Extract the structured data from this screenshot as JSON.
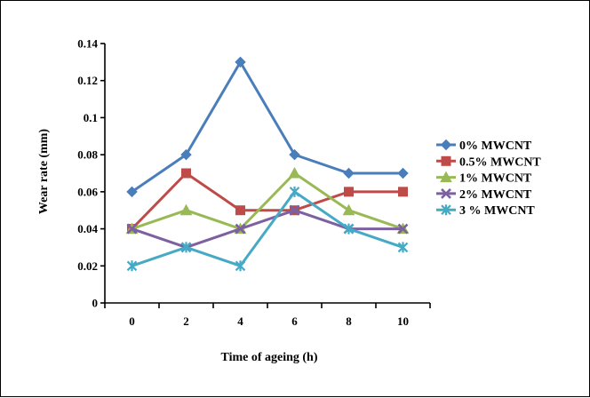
{
  "chart_data": {
    "type": "line",
    "title": "",
    "xlabel": "Time of ageing  (h)",
    "ylabel": "Wear rate  (mm)",
    "x": [
      0,
      2,
      4,
      6,
      8,
      10
    ],
    "x_tick_labels": [
      "0",
      "2",
      "4",
      "6",
      "8",
      "10"
    ],
    "ylim": [
      0,
      0.14
    ],
    "y_ticks": [
      0,
      0.02,
      0.04,
      0.06,
      0.08,
      0.1,
      0.12,
      0.14
    ],
    "y_tick_labels": [
      "0",
      "0.02",
      "0.04",
      "0.06",
      "0.08",
      "0.1",
      "0.12",
      "0.14"
    ],
    "grid": false,
    "legend_position": "right",
    "series": [
      {
        "name": "0% MWCNT",
        "values": [
          0.06,
          0.08,
          0.13,
          0.08,
          0.07,
          0.07
        ],
        "color": "#4a7ebb",
        "marker": "diamond"
      },
      {
        "name": "0.5% MWCNT",
        "values": [
          0.04,
          0.07,
          0.05,
          0.05,
          0.06,
          0.06
        ],
        "color": "#be4b48",
        "marker": "square"
      },
      {
        "name": "1% MWCNT",
        "values": [
          0.04,
          0.05,
          0.04,
          0.07,
          0.05,
          0.04
        ],
        "color": "#98b954",
        "marker": "triangle"
      },
      {
        "name": "2% MWCNT",
        "values": [
          0.04,
          0.03,
          0.04,
          0.05,
          0.04,
          0.04
        ],
        "color": "#7d60a0",
        "marker": "x"
      },
      {
        "name": "3 % MWCNT",
        "values": [
          0.02,
          0.03,
          0.02,
          0.06,
          0.04,
          0.03
        ],
        "color": "#46aac5",
        "marker": "star"
      }
    ]
  }
}
